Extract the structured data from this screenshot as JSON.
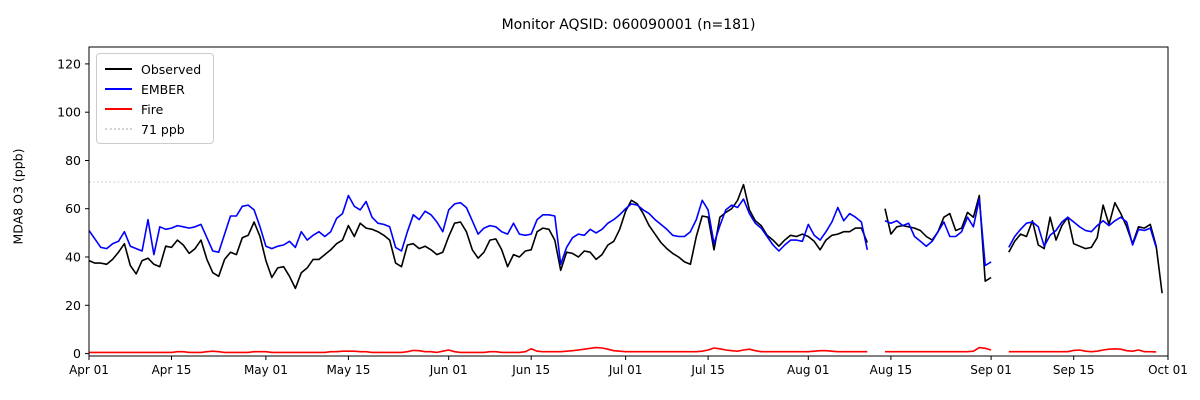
{
  "title": "Monitor AQSID: 060090001 (n=181)",
  "ylabel": "MDA8 O3 (ppb)",
  "colors": {
    "observed": "#000000",
    "ember": "#0000ff",
    "fire": "#ff0000",
    "threshold": "#d3d3d3",
    "spine": "#000000",
    "background": "#ffffff"
  },
  "legend": {
    "items": [
      {
        "label": "Observed",
        "color": "#000000",
        "style": "solid"
      },
      {
        "label": "EMBER",
        "color": "#0000ff",
        "style": "solid"
      },
      {
        "label": "Fire",
        "color": "#ff0000",
        "style": "solid"
      },
      {
        "label": "71 ppb",
        "color": "#d3d3d3",
        "style": "dotted"
      }
    ],
    "position": "upper left"
  },
  "chart_data": {
    "type": "line",
    "title": "Monitor AQSID: 060090001 (n=181)",
    "xlabel": "",
    "ylabel": "MDA8 O3 (ppb)",
    "grid": false,
    "legend_position": "upper left",
    "ylim": [
      -1,
      127
    ],
    "x_axis": {
      "unit": "days since Apr 01",
      "span_days": 183
    },
    "yticks": [
      0,
      20,
      40,
      60,
      80,
      100,
      120
    ],
    "xticks": [
      {
        "day": 0,
        "label": "Apr 01"
      },
      {
        "day": 14,
        "label": "Apr 15"
      },
      {
        "day": 30,
        "label": "May 01"
      },
      {
        "day": 44,
        "label": "May 15"
      },
      {
        "day": 61,
        "label": "Jun 01"
      },
      {
        "day": 75,
        "label": "Jun 15"
      },
      {
        "day": 91,
        "label": "Jul 01"
      },
      {
        "day": 105,
        "label": "Jul 15"
      },
      {
        "day": 122,
        "label": "Aug 01"
      },
      {
        "day": 136,
        "label": "Aug 15"
      },
      {
        "day": 153,
        "label": "Sep 01"
      },
      {
        "day": 167,
        "label": "Sep 15"
      },
      {
        "day": 183,
        "label": "Oct 01"
      }
    ],
    "threshold": {
      "value": 71,
      "label": "71 ppb",
      "color": "#d3d3d3",
      "style": "dotted"
    },
    "series": [
      {
        "name": "Observed",
        "color": "#000000",
        "values": [
          38.5,
          37.5,
          37.5,
          37,
          39,
          42,
          45.5,
          36.5,
          33,
          38.5,
          39.5,
          37,
          36,
          44.5,
          44,
          47,
          45,
          41.5,
          43.5,
          47,
          39,
          33.5,
          32,
          39,
          42,
          41,
          48,
          49,
          54.5,
          48.5,
          38.5,
          31.5,
          35.5,
          36,
          32,
          27,
          33.5,
          35.5,
          39,
          39,
          41,
          43,
          45.5,
          47,
          53,
          48.5,
          54,
          52,
          51.5,
          50.5,
          49,
          47,
          37.5,
          36,
          45,
          45.5,
          43.5,
          44.5,
          43,
          41,
          42,
          48.5,
          54,
          54.5,
          50.5,
          43,
          39.5,
          42,
          47,
          47.5,
          43,
          36,
          41,
          40,
          42.5,
          43,
          50.5,
          52,
          51.5,
          47,
          34.5,
          42,
          41.5,
          40,
          42.5,
          42,
          39,
          41,
          45,
          46.5,
          51.5,
          59,
          63.5,
          62,
          58,
          53,
          49.5,
          46,
          43.5,
          41.5,
          40,
          38,
          37,
          48.5,
          57,
          56.5,
          43,
          56.5,
          58.5,
          60,
          63.5,
          70,
          59.5,
          55,
          53,
          49,
          47,
          44.5,
          47,
          49,
          48.5,
          49.5,
          48.5,
          46.5,
          43,
          47,
          49,
          49.5,
          50.5,
          50.5,
          52,
          52,
          46,
          null,
          null,
          60,
          49.5,
          52.5,
          53,
          52.5,
          52,
          51,
          48.5,
          47,
          50.5,
          56.5,
          58,
          51,
          52,
          58.5,
          56.5,
          65.5,
          30,
          31.5,
          null,
          null,
          42,
          46.5,
          49.5,
          48.5,
          55,
          45,
          43.5,
          56.5,
          47,
          53,
          56.5,
          45.5,
          44.5,
          43.5,
          44,
          48,
          61.5,
          53.5,
          62.5,
          58,
          52.5,
          45.5,
          52.5,
          52,
          53.5,
          44.5,
          25
        ]
      },
      {
        "name": "EMBER",
        "color": "#0000ff",
        "values": [
          51,
          47.5,
          44,
          43.5,
          45.5,
          46.5,
          50.5,
          44.5,
          43.5,
          42.5,
          55.5,
          41,
          52.5,
          51.5,
          52,
          53,
          52.5,
          52,
          52.5,
          53.5,
          48,
          42.5,
          42,
          49.5,
          57,
          57,
          61,
          61.5,
          59.5,
          52.5,
          44.5,
          43.5,
          44.5,
          45,
          46.5,
          44,
          50.5,
          47,
          49,
          50.5,
          48.5,
          50.5,
          56,
          58,
          65.5,
          61,
          59.5,
          63,
          56.5,
          54,
          53.5,
          52.5,
          44,
          42.5,
          50.5,
          57.5,
          55.5,
          59,
          57.5,
          54.5,
          50.5,
          59.5,
          62,
          62.5,
          60.5,
          55,
          49.5,
          52,
          53,
          52.5,
          50.5,
          49.5,
          54,
          49.5,
          49,
          49.5,
          55.5,
          57.5,
          57.5,
          57,
          37,
          44,
          48,
          49.5,
          49,
          51.5,
          50,
          51.5,
          54,
          55.5,
          57.5,
          60,
          62,
          61.5,
          59.5,
          58,
          55.5,
          53.5,
          51.5,
          49,
          48.5,
          48.5,
          50.5,
          55.5,
          63.5,
          59.5,
          45.5,
          53,
          59.5,
          61.5,
          60.5,
          64,
          58,
          54,
          52,
          48.5,
          45,
          42.5,
          45,
          47,
          47,
          46.5,
          53.5,
          49,
          47,
          50.5,
          54.5,
          60.5,
          55,
          58,
          56.5,
          54.5,
          43,
          null,
          null,
          55,
          54,
          55,
          53,
          54,
          48.5,
          46.5,
          44.5,
          46.5,
          50.5,
          54.5,
          48.5,
          48.5,
          50.5,
          56.5,
          52.5,
          64,
          36.5,
          38,
          null,
          null,
          44,
          48.5,
          51.5,
          54,
          54.5,
          52.5,
          44.5,
          49,
          51,
          54.5,
          56.5,
          54.5,
          52.5,
          51,
          50.5,
          53,
          55,
          53,
          55,
          56.5,
          54.5,
          45,
          51.5,
          51,
          52,
          44,
          null
        ]
      },
      {
        "name": "Fire",
        "color": "#ff0000",
        "values": [
          0.5,
          0.5,
          0.5,
          0.5,
          0.5,
          0.5,
          0.5,
          0.5,
          0.5,
          0.5,
          0.5,
          0.5,
          0.5,
          0.5,
          0.5,
          0.8,
          0.8,
          0.5,
          0.5,
          0.5,
          0.8,
          1,
          0.8,
          0.5,
          0.5,
          0.5,
          0.5,
          0.5,
          0.8,
          0.8,
          0.8,
          0.5,
          0.5,
          0.5,
          0.5,
          0.5,
          0.5,
          0.5,
          0.5,
          0.5,
          0.5,
          0.8,
          0.8,
          1,
          1,
          1,
          0.8,
          0.8,
          0.5,
          0.5,
          0.5,
          0.5,
          0.5,
          0.5,
          0.8,
          1.3,
          1.2,
          0.8,
          0.8,
          0.5,
          1,
          1.5,
          0.8,
          0.5,
          0.5,
          0.5,
          0.5,
          0.5,
          0.8,
          0.8,
          0.5,
          0.5,
          0.5,
          0.5,
          0.8,
          2,
          1,
          0.8,
          0.8,
          0.8,
          0.8,
          1,
          1.2,
          1.5,
          1.8,
          2.2,
          2.5,
          2.3,
          1.8,
          1.2,
          1,
          0.8,
          0.8,
          0.8,
          0.8,
          0.8,
          0.8,
          0.8,
          0.8,
          0.8,
          0.8,
          0.8,
          0.8,
          0.8,
          1,
          1.5,
          2.3,
          2,
          1.5,
          1.2,
          1,
          1.5,
          1.8,
          1.2,
          0.8,
          0.8,
          0.8,
          0.8,
          0.8,
          0.8,
          0.8,
          0.8,
          0.8,
          1,
          1.2,
          1.2,
          1,
          0.8,
          0.8,
          0.8,
          0.8,
          0.8,
          0.8,
          null,
          null,
          0.8,
          0.8,
          0.8,
          0.8,
          0.8,
          0.8,
          0.8,
          0.8,
          0.8,
          0.8,
          0.8,
          0.8,
          0.8,
          0.8,
          0.8,
          1,
          2.5,
          2.2,
          1.5,
          null,
          null,
          0.8,
          0.8,
          0.8,
          0.8,
          0.8,
          0.8,
          0.8,
          0.8,
          0.8,
          0.8,
          0.8,
          1.3,
          1.5,
          1,
          0.8,
          1,
          1.5,
          1.8,
          2,
          1.8,
          1.2,
          1,
          1.5,
          0.8,
          0.8,
          0.7,
          null
        ]
      }
    ]
  }
}
